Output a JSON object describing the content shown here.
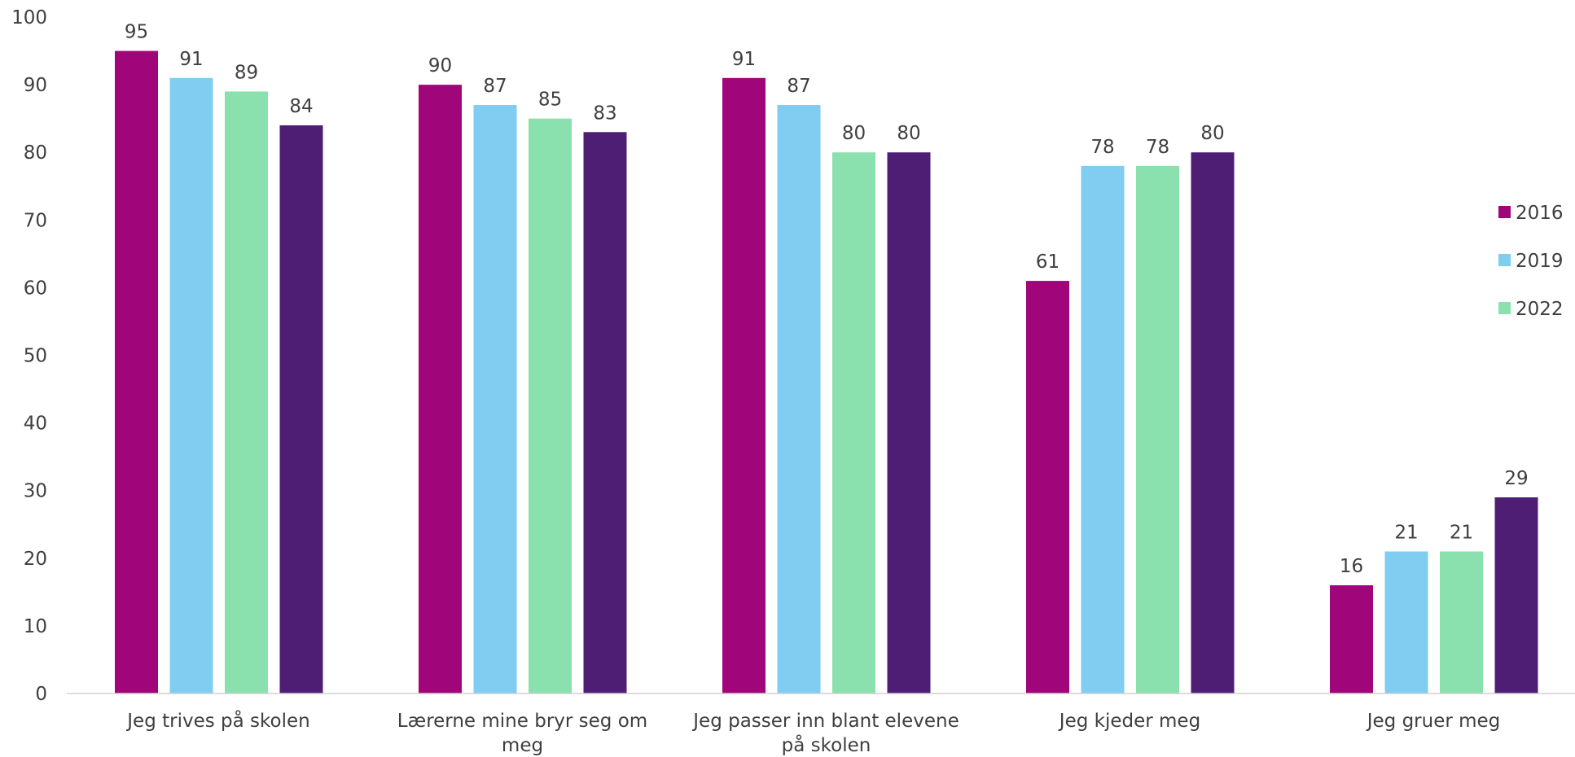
{
  "chart_data": {
    "type": "bar",
    "categories": [
      "Jeg trives på skolen",
      "Lærerne mine bryr seg om meg",
      "Jeg passer inn blant elevene på skolen",
      "Jeg kjeder meg",
      "Jeg gruer meg"
    ],
    "category_lines": [
      [
        "Jeg trives på skolen"
      ],
      [
        "Lærerne mine bryr seg om",
        "meg"
      ],
      [
        "Jeg passer inn blant elevene",
        "på skolen"
      ],
      [
        "Jeg kjeder meg"
      ],
      [
        "Jeg gruer meg"
      ]
    ],
    "series": [
      {
        "name": "2016",
        "color": "#a1057a",
        "values": [
          95,
          90,
          91,
          61,
          16
        ]
      },
      {
        "name": "2019",
        "color": "#80cdf1",
        "values": [
          91,
          87,
          87,
          78,
          21
        ]
      },
      {
        "name": "2022",
        "color": "#8be1ae",
        "values": [
          89,
          85,
          80,
          78,
          21
        ]
      },
      {
        "color": "#4e1e74",
        "values": [
          84,
          83,
          80,
          80,
          29
        ]
      }
    ],
    "ylim": [
      0,
      100
    ],
    "yticks": [
      0,
      10,
      20,
      30,
      40,
      50,
      60,
      70,
      80,
      90,
      100
    ],
    "grid": false,
    "legend_position": "right",
    "data_labels": true,
    "title": "",
    "xlabel": "",
    "ylabel": ""
  }
}
